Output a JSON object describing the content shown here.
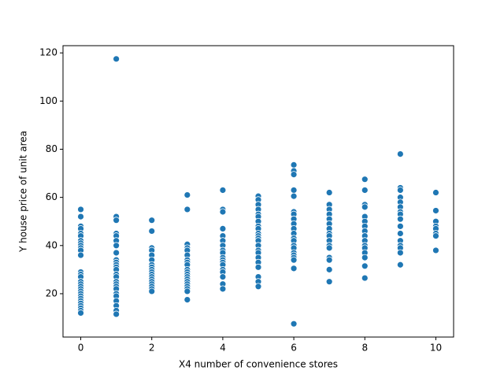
{
  "chart_data": {
    "type": "scatter",
    "xlabel": "X4 number of convenience stores",
    "ylabel": "Y house price of unit area",
    "color": "#1f77b4",
    "xlim": [
      -0.5,
      10.5
    ],
    "ylim": [
      2,
      123
    ],
    "xticks": [
      0,
      2,
      4,
      6,
      8,
      10
    ],
    "yticks": [
      20,
      40,
      60,
      80,
      100,
      120
    ],
    "x": [
      0,
      0,
      0,
      0,
      0,
      0,
      0,
      0,
      0,
      0,
      0,
      0,
      0,
      0,
      0,
      0,
      0,
      0,
      0,
      0,
      0,
      0,
      0,
      0,
      0,
      0,
      0,
      0,
      0,
      1,
      1,
      1,
      1,
      1,
      1,
      1,
      1,
      1,
      1,
      1,
      1,
      1,
      1,
      1,
      1,
      1,
      1,
      1,
      1,
      1,
      1,
      1,
      1,
      1,
      2,
      2,
      2,
      2,
      2,
      2,
      2,
      2,
      2,
      2,
      2,
      2,
      2,
      2,
      2,
      2,
      2,
      2,
      3,
      3,
      3,
      3,
      3,
      3,
      3,
      3,
      3,
      3,
      3,
      3,
      3,
      3,
      3,
      3,
      3,
      3,
      3,
      3,
      4,
      4,
      4,
      4,
      4,
      4,
      4,
      4,
      4,
      4,
      4,
      4,
      4,
      4,
      4,
      4,
      4,
      4,
      5,
      5,
      5,
      5,
      5,
      5,
      5,
      5,
      5,
      5,
      5,
      5,
      5,
      5,
      5,
      5,
      5,
      5,
      5,
      5,
      5,
      5,
      6,
      6,
      6,
      6,
      6,
      6,
      6,
      6,
      6,
      6,
      6,
      6,
      6,
      6,
      6,
      6,
      6,
      6,
      6,
      6,
      6,
      7,
      7,
      7,
      7,
      7,
      7,
      7,
      7,
      7,
      7,
      7,
      7,
      7,
      7,
      7,
      7,
      8,
      8,
      8,
      8,
      8,
      8,
      8,
      8,
      8,
      8,
      8,
      8,
      8,
      8,
      8,
      8,
      9,
      9,
      9,
      9,
      9,
      9,
      9,
      9,
      9,
      9,
      9,
      9,
      9,
      9,
      9,
      9,
      10,
      10,
      10,
      10,
      10,
      10,
      10,
      10
    ],
    "y": [
      55,
      52,
      48,
      47,
      45,
      44,
      42,
      41,
      40,
      39,
      38,
      36,
      29,
      28,
      27,
      25,
      24,
      23,
      22,
      21,
      20,
      19,
      18,
      17,
      16,
      15,
      14,
      13,
      12,
      117.5,
      52,
      50.5,
      45,
      44,
      42,
      40,
      37,
      34,
      33,
      32,
      31,
      30,
      28,
      27,
      25,
      24,
      23,
      22,
      20,
      19,
      17,
      15,
      13,
      11.5,
      50.5,
      46,
      39,
      38,
      36,
      34,
      32,
      31,
      30,
      29,
      28,
      27,
      26,
      25,
      24,
      23,
      22,
      21,
      61,
      55,
      40.5,
      39,
      38,
      36,
      34,
      33,
      32,
      30,
      29,
      28,
      27,
      26,
      25,
      24,
      23,
      22,
      21,
      17.5,
      63,
      55,
      54,
      47,
      44,
      42,
      40,
      38,
      37,
      35,
      34,
      33,
      32,
      30,
      29,
      27,
      24,
      22,
      60.5,
      59,
      57,
      55,
      53,
      52,
      50,
      48,
      47,
      45,
      44,
      43,
      42,
      40,
      38,
      37,
      35,
      33,
      31,
      27,
      25,
      23,
      73.5,
      71,
      69.5,
      63,
      60.5,
      54,
      53,
      51,
      49,
      47,
      45,
      43,
      42,
      40,
      39,
      37,
      36,
      35,
      34,
      30.5,
      7.5,
      62,
      57,
      55,
      53,
      51,
      49,
      47,
      45,
      44,
      42,
      40,
      39,
      35,
      34,
      30,
      25,
      67.5,
      63,
      57,
      56,
      52,
      50,
      48,
      46,
      44,
      42,
      40,
      39,
      37,
      35,
      31.5,
      26.5,
      78,
      64,
      63,
      60,
      58,
      56,
      54,
      53,
      51,
      48,
      45,
      42,
      40,
      39,
      37,
      32,
      62,
      54.5,
      50,
      48,
      47,
      45,
      44,
      38
    ]
  }
}
